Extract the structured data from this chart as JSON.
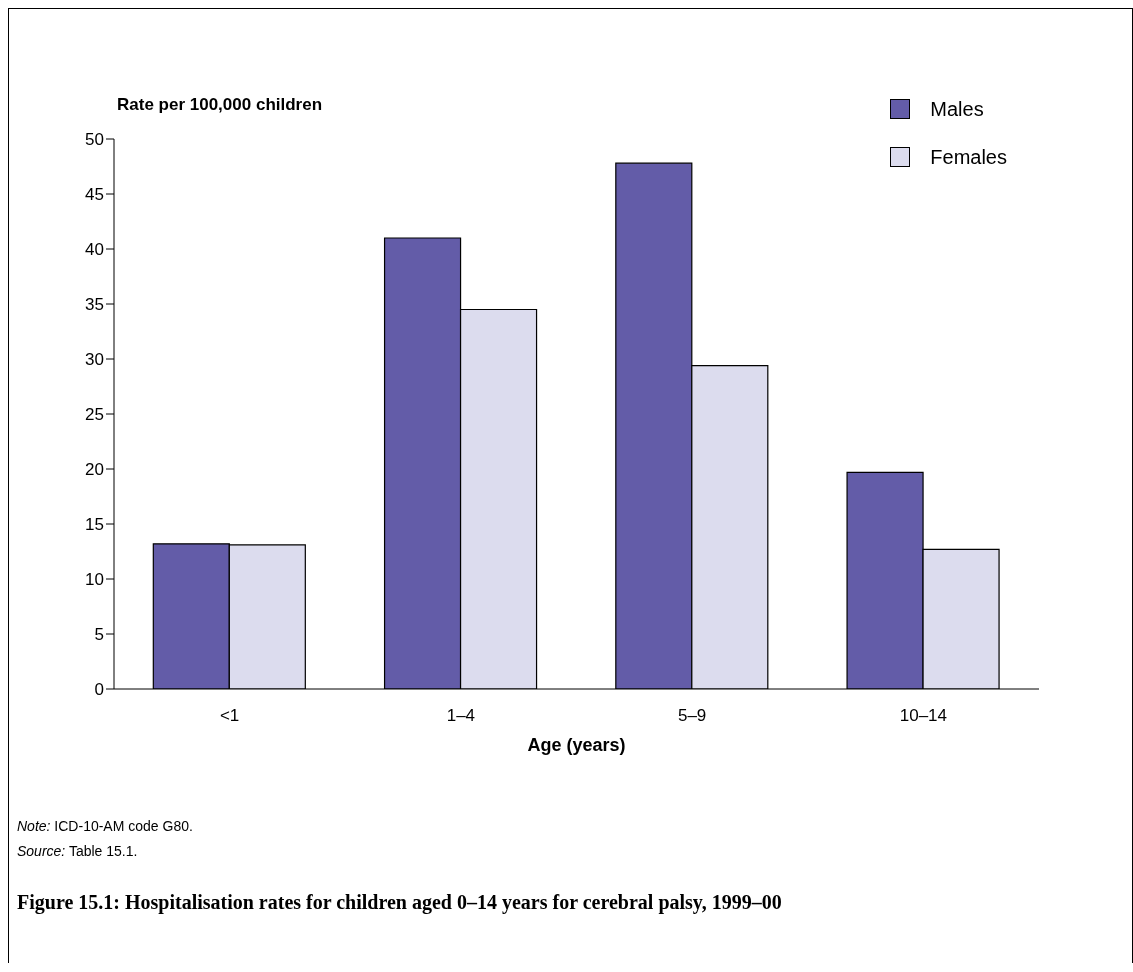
{
  "chart_data": {
    "type": "bar",
    "title": "Figure 15.1: Hospitalisation rates for children aged 0–14 years for cerebral palsy, 1999–00",
    "ylabel": "Rate per 100,000 children",
    "xlabel": "Age (years)",
    "categories": [
      "<1",
      "1–4",
      "5–9",
      "10–14"
    ],
    "series": [
      {
        "name": "Males",
        "color": "#635ca8",
        "values": [
          13.2,
          41.0,
          47.8,
          19.7
        ]
      },
      {
        "name": "Females",
        "color": "#dcdcee",
        "values": [
          13.1,
          34.5,
          29.4,
          12.7
        ]
      }
    ],
    "ylim": [
      0,
      50
    ],
    "yticks": [
      0,
      5,
      10,
      15,
      20,
      25,
      30,
      35,
      40,
      45,
      50
    ],
    "grid": false,
    "legend": "top right",
    "annotations": [
      "Note: ICD-10-AM code G80.",
      "Source: Table 15.1."
    ]
  }
}
